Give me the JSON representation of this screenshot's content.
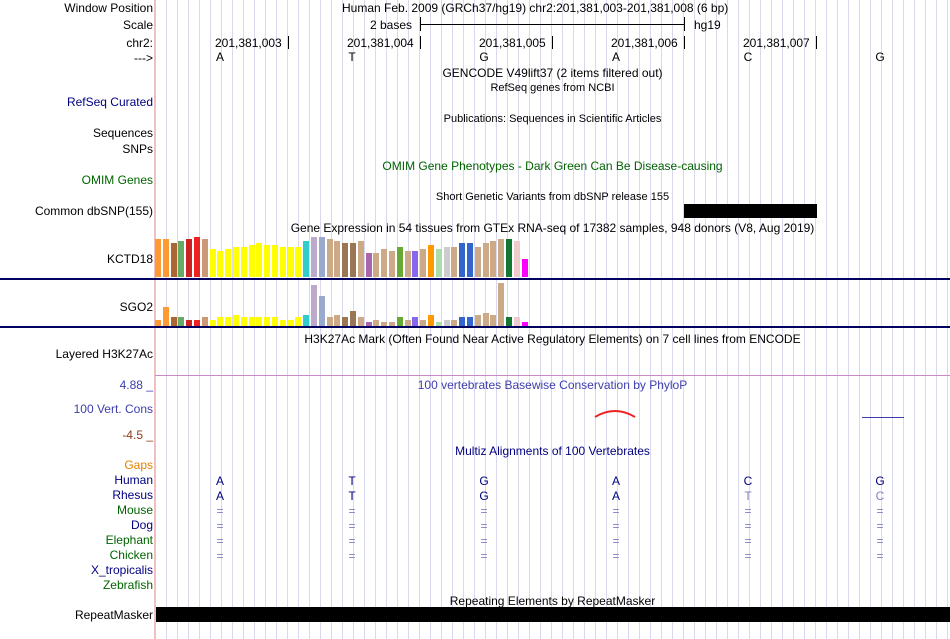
{
  "header": {
    "window_position_label": "Window Position",
    "window_position_text": "Human Feb. 2009 (GRCh37/hg19)   chr2:201,381,003-201,381,008 (6 bp)",
    "scale_label": "Scale",
    "scale_text": "2 bases",
    "scale_assembly": "hg19",
    "chrom_label": "chr2:",
    "strand_label": "--->",
    "coords": [
      "201,381,003",
      "201,381,004",
      "201,381,005",
      "201,381,006",
      "201,381,007"
    ],
    "bases": [
      "A",
      "T",
      "G",
      "A",
      "C",
      "G"
    ]
  },
  "tracks": {
    "gencode_title": "GENCODE V49lift37 (2 items filtered out)",
    "refseq_title": "RefSeq genes from NCBI",
    "refseq_label": "RefSeq Curated",
    "publications_title": "Publications: Sequences in Scientific Articles",
    "sequences_label": "Sequences",
    "snps_label": "SNPs",
    "omim_title": "OMIM Gene Phenotypes - Dark Green Can Be Disease-causing",
    "omim_label": "OMIM Genes",
    "dbsnp_title": "Short Genetic Variants from dbSNP release 155",
    "dbsnp_label": "Common dbSNP(155)",
    "gtex_title": "Gene Expression in 54 tissues from GTEx RNA-seq of 17382 samples, 948 donors (V8, Aug 2019)",
    "gtex_gene1": "KCTD18",
    "gtex_gene2": "SGO2",
    "h3k27ac_title": "H3K27Ac Mark (Often Found Near Active Regulatory Elements) on 7 cell lines from ENCODE",
    "h3k27ac_label": "Layered H3K27Ac",
    "phylop_title": "100 vertebrates Basewise Conservation by PhyloP",
    "phylop_label": "100 Vert. Cons",
    "phylop_max": "4.88 _",
    "phylop_min": "-4.5 _",
    "multiz_title": "Multiz Alignments of 100 Vertebrates",
    "gaps_label": "Gaps",
    "species": [
      "Human",
      "Rhesus",
      "Mouse",
      "Dog",
      "Elephant",
      "Chicken",
      "X_tropicalis",
      "Zebrafish"
    ],
    "rhesus_bases": [
      "A",
      "T",
      "G",
      "A",
      "T",
      "C"
    ],
    "dash": "=",
    "repeat_title": "Repeating Elements by RepeatMasker",
    "repeat_label": "RepeatMasker"
  },
  "colors": {
    "navy": "#000080",
    "green": "#006400",
    "orange": "#e08000",
    "phylop_blue": "#3d3dae",
    "phylop_red": "#8b3a1a",
    "gtex_bars": [
      "#ff9933",
      "#ff9933",
      "#aa6633",
      "#66aa66",
      "#cc2222",
      "#ee2222",
      "#cc9977",
      "#ffff00",
      "#ffff00",
      "#ffff00",
      "#ffff00",
      "#ffff00",
      "#ffff00",
      "#ffff00",
      "#ffff00",
      "#ffff00",
      "#ffff00",
      "#ffff00",
      "#ffff00",
      "#33cccc",
      "#bbaacc",
      "#99aacc",
      "#ccaa88",
      "#ccaa88",
      "#997755",
      "#997755",
      "#ccaa88",
      "#aa66aa",
      "#ccaa88",
      "#ccaa88",
      "#ccaa88",
      "#66aa33",
      "#ccaa88",
      "#8866ee",
      "#ccaa88",
      "#ff9900",
      "#aaddaa",
      "#cccccc",
      "#ccaa88",
      "#3366cc",
      "#3366cc",
      "#ccaa88",
      "#ccaa88",
      "#ccaa88",
      "#ccaa88",
      "#117733",
      "#eecccc",
      "#ff00ff"
    ]
  },
  "gtex": {
    "kctd18_levels": [
      0.95,
      0.95,
      0.85,
      0.9,
      0.95,
      1.0,
      0.95,
      0.7,
      0.65,
      0.7,
      0.75,
      0.75,
      0.8,
      0.85,
      0.8,
      0.8,
      0.75,
      0.75,
      0.75,
      0.9,
      1.0,
      1.0,
      0.95,
      0.9,
      0.85,
      0.85,
      0.9,
      0.6,
      0.6,
      0.7,
      0.65,
      0.75,
      0.65,
      0.65,
      0.7,
      0.8,
      0.7,
      0.75,
      0.75,
      0.85,
      0.85,
      0.75,
      0.85,
      0.9,
      0.95,
      0.95,
      0.9,
      0.45
    ],
    "sgo2_levels": [
      0.15,
      0.45,
      0.2,
      0.2,
      0.15,
      0.15,
      0.2,
      0.15,
      0.2,
      0.2,
      0.25,
      0.2,
      0.2,
      0.2,
      0.2,
      0.2,
      0.15,
      0.15,
      0.2,
      0.25,
      0.95,
      0.7,
      0.2,
      0.25,
      0.2,
      0.35,
      0.2,
      0.1,
      0.15,
      0.1,
      0.1,
      0.2,
      0.15,
      0.2,
      0.15,
      0.25,
      0.1,
      0.15,
      0.15,
      0.2,
      0.2,
      0.25,
      0.3,
      0.25,
      1.0,
      0.2,
      0.2,
      0.1
    ]
  }
}
